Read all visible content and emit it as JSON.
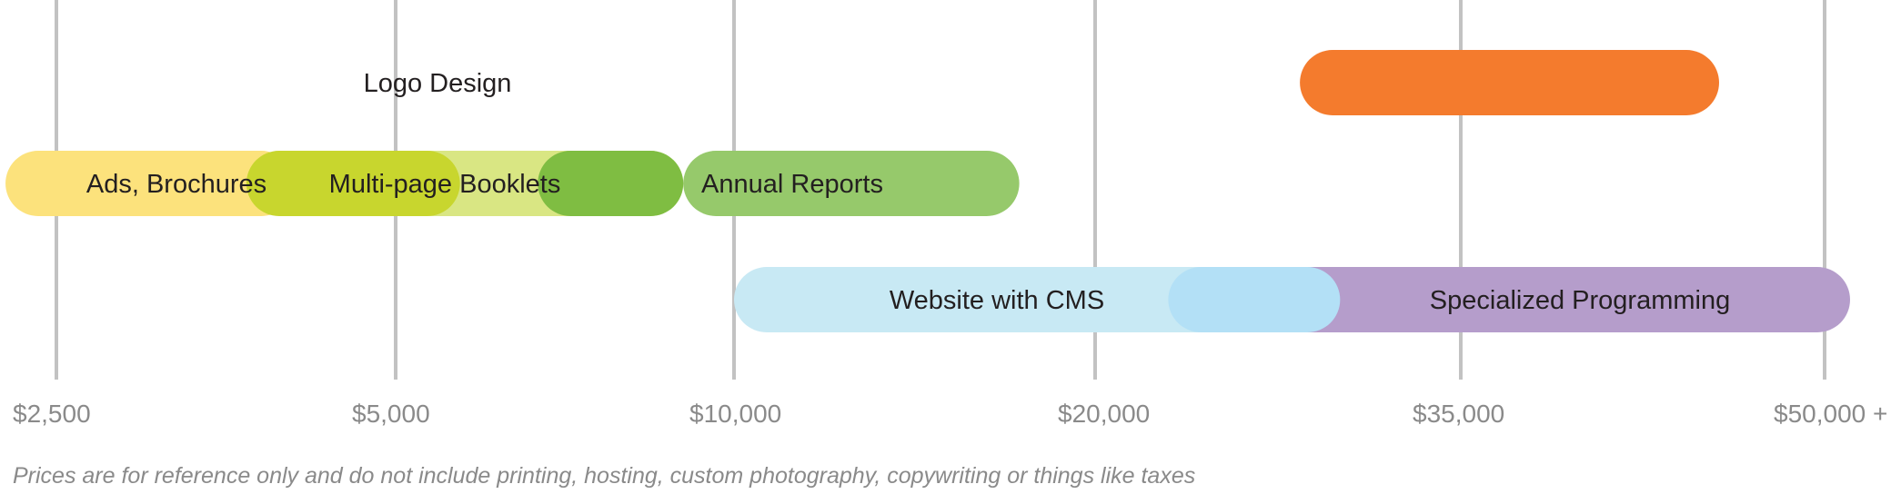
{
  "chart_data": {
    "type": "range-bar",
    "axis_ticks": [
      "$2,500",
      "$5,000",
      "$10,000",
      "$20,000",
      "$35,000",
      "$50,000 +"
    ],
    "grid": true,
    "bars": [
      {
        "name": "Logo Design",
        "start": 3.56,
        "end": 4.71,
        "row": 0,
        "color": "#f47b2d"
      },
      {
        "name": "Ads, Brochures",
        "start": -0.15,
        "end": 0.7,
        "row": 1,
        "color": "#fce27c"
      },
      {
        "name": "Multi-page Booklets",
        "start": 0.7,
        "end": 1.85,
        "row": 1,
        "color": "#d9e683"
      },
      {
        "name": "Annual Reports",
        "start": 1.85,
        "end": 2.79,
        "row": 1,
        "color": "#96c96b"
      },
      {
        "name": "Website with CMS",
        "start": 2.0,
        "end": 3.67,
        "row": 2,
        "color": "#c8e9f4"
      },
      {
        "name": "Specialized Programming",
        "start": 3.34,
        "end": 5.07,
        "row": 2,
        "color": "#b59dcb"
      }
    ],
    "overlaps": [
      {
        "start": 0.56,
        "end": 1.19,
        "row": 1,
        "color": "#c8d62e"
      },
      {
        "start": 1.42,
        "end": 1.85,
        "row": 1,
        "color": "#7fbd42"
      },
      {
        "start": 3.2,
        "end": 3.67,
        "row": 2,
        "color": "#b3e0f6"
      }
    ]
  },
  "footnote": "Prices are for reference only and do not include printing, hosting, custom photography, copywriting or things like taxes"
}
